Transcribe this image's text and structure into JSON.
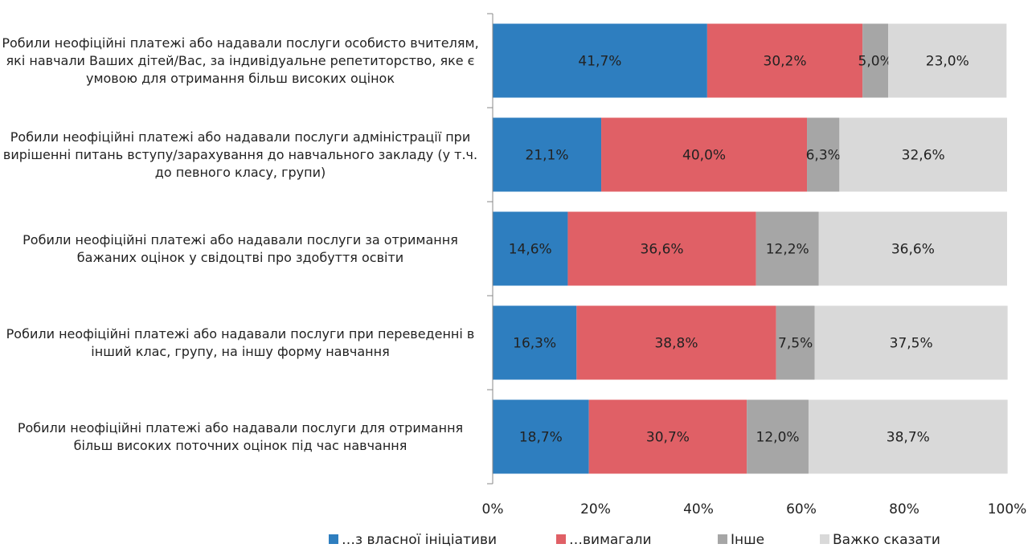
{
  "chart_data": {
    "type": "stacked_barh",
    "categories": [
      "Робили неофіційні платежі або надавали послуги особисто вчителям, які навчали Ваших дітей/Вас, за індивідуальне репетиторство, яке є умовою для отримання більш високих оцінок",
      "Робили неофіційні платежі або надавали послуги адміністрації при  вирішенні питань вступу/зарахування до навчального закладу (у т.ч. до певного класу, групи)",
      "Робили неофіційні платежі або надавали послуги за отримання бажаних оцінок у свідоцтві про здобуття освіти",
      "Робили неофіційні платежі або надавали послуги при переведенні в інший клас, групу, на іншу форму навчання",
      "Робили неофіційні платежі або надавали послуги для отримання більш високих поточних оцінок під час навчання"
    ],
    "series": [
      {
        "name": "…з власної ініціативи",
        "color": "#2e7ebf",
        "values": [
          41.7,
          21.1,
          14.6,
          16.3,
          18.7
        ],
        "value_labels": [
          "41,7%",
          "21,1%",
          "14,6%",
          "16,3%",
          "18,7%"
        ]
      },
      {
        "name": "…вимагали",
        "color": "#e06066",
        "values": [
          30.2,
          40.0,
          36.6,
          38.8,
          30.7
        ],
        "value_labels": [
          "30,2%",
          "40,0%",
          "36,6%",
          "38,8%",
          "30,7%"
        ]
      },
      {
        "name": "Інше",
        "color": "#a6a6a6",
        "values": [
          5.0,
          6.3,
          12.2,
          7.5,
          12.0
        ],
        "value_labels": [
          "5,0%",
          "6,3%",
          "12,2%",
          "7,5%",
          "12,0%"
        ]
      },
      {
        "name": "Важко сказати",
        "color": "#d9d9d9",
        "values": [
          23.0,
          32.6,
          36.6,
          37.5,
          38.7
        ],
        "value_labels": [
          "23,0%",
          "32,6%",
          "36,6%",
          "37,5%",
          "38,7%"
        ]
      }
    ],
    "xlim": [
      0,
      100
    ],
    "xticks": [
      {
        "value": 0,
        "label": "0%"
      },
      {
        "value": 20,
        "label": "20%"
      },
      {
        "value": 40,
        "label": "40%"
      },
      {
        "value": 60,
        "label": "60%"
      },
      {
        "value": 80,
        "label": "80%"
      },
      {
        "value": 100,
        "label": "100%"
      }
    ],
    "grid": false,
    "legend": "bottom"
  }
}
